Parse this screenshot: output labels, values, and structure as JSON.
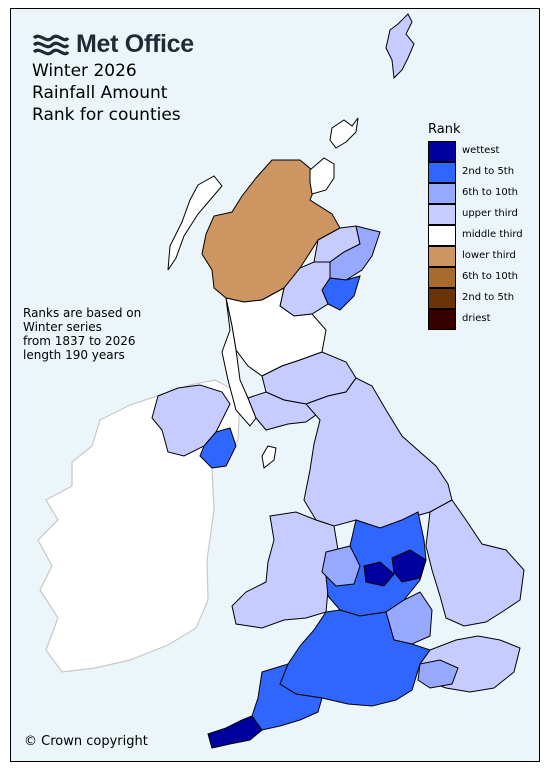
{
  "branding": {
    "logo_text": "Met Office"
  },
  "title": {
    "line1": "Winter 2026",
    "line2": "Rainfall Amount",
    "line3": "Rank for counties"
  },
  "note": {
    "line1": "Ranks are based on",
    "line2": "Winter series",
    "line3": "from 1837 to 2026",
    "line4": "length 190 years"
  },
  "legend": {
    "title": "Rank",
    "items": [
      {
        "label": "wettest",
        "color": "#00009e"
      },
      {
        "label": "2nd to 5th",
        "color": "#2f66ff"
      },
      {
        "label": "6th to 10th",
        "color": "#97a8ff"
      },
      {
        "label": "upper third",
        "color": "#c6ccff"
      },
      {
        "label": "middle third",
        "color": "#ffffff"
      },
      {
        "label": "lower third",
        "color": "#cd9562"
      },
      {
        "label": "6th to 10th",
        "color": "#a96a2e"
      },
      {
        "label": "2nd to 5th",
        "color": "#6b3408"
      },
      {
        "label": "driest",
        "color": "#3a0000"
      }
    ]
  },
  "colors": {
    "sea": "#ecf6fa",
    "ireland": "#ffffff",
    "ireland_border": "#c8c8c8",
    "outline": "#000000"
  },
  "footer": {
    "copyright": "© Crown copyright"
  }
}
